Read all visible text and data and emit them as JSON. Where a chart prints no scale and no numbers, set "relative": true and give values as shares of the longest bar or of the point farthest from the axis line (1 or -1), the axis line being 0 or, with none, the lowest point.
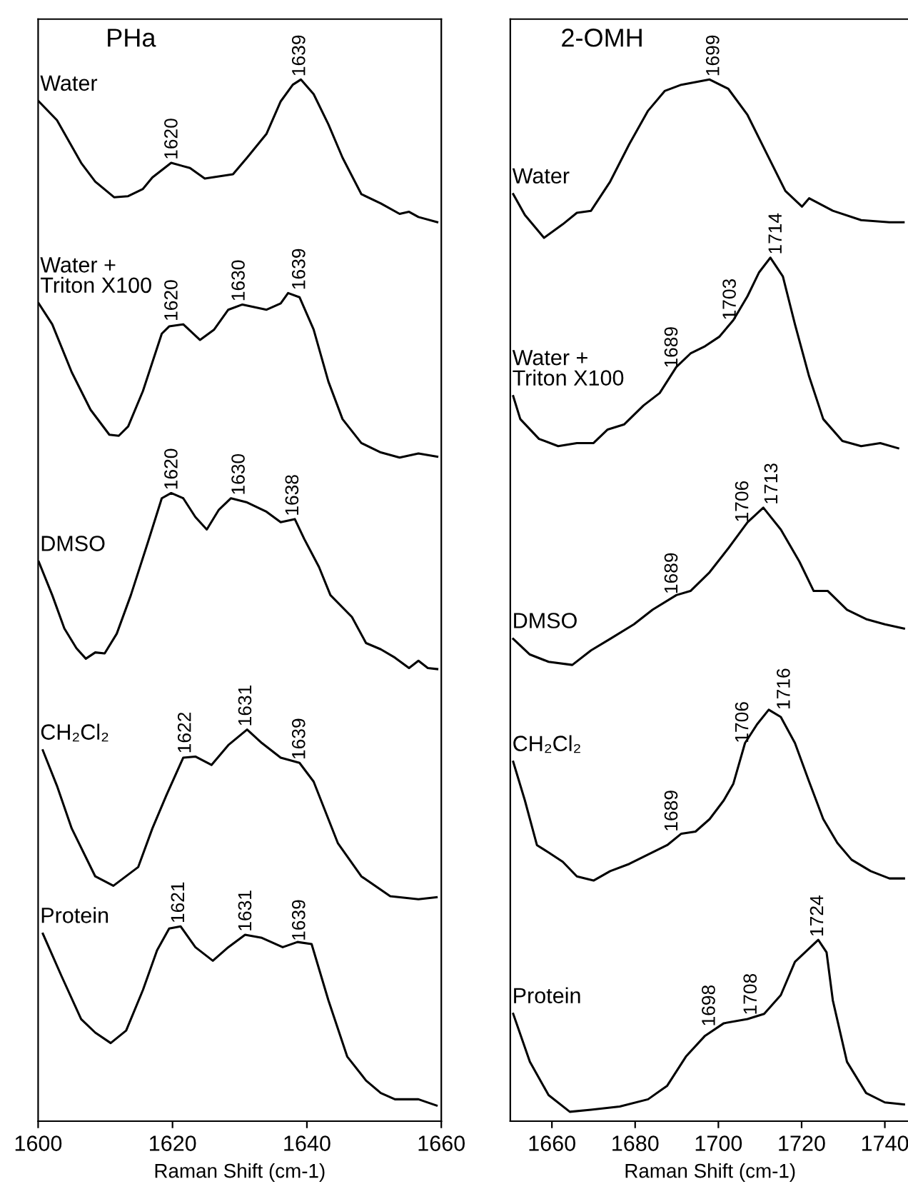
{
  "chart_data": [
    {
      "type": "line",
      "relative": true,
      "title": "PHa",
      "xlabel": "Raman Shift (cm-1)",
      "xlim": [
        1600,
        1660
      ],
      "xticks": [
        1600,
        1620,
        1640,
        1660
      ],
      "tick_labels": "x",
      "series": [
        {
          "name": "Water",
          "color": "#000000",
          "x": [
            1600.1,
            1602.8,
            1606.4,
            1608.5,
            1611.3,
            1613.4,
            1615.6,
            1617.0,
            1619.8,
            1622.6,
            1624.8,
            1629.0,
            1631.1,
            1634.0,
            1636.1,
            1637.9,
            1639.1,
            1641.0,
            1643.2,
            1645.3,
            1648.1,
            1651.0,
            1653.8,
            1655.2,
            1656.6,
            1659.4
          ],
          "values": [
            0.979,
            0.961,
            0.92,
            0.902,
            0.887,
            0.888,
            0.895,
            0.906,
            0.92,
            0.915,
            0.905,
            0.909,
            0.925,
            0.948,
            0.979,
            0.995,
            1.0,
            0.986,
            0.957,
            0.925,
            0.89,
            0.881,
            0.871,
            0.873,
            0.868,
            0.863
          ]
        },
        {
          "name": "Water + Triton X100",
          "color": "#000000",
          "x": [
            1600.1,
            1602.1,
            1605.0,
            1607.8,
            1610.6,
            1612.0,
            1613.4,
            1615.6,
            1618.4,
            1619.5,
            1621.6,
            1624.1,
            1626.2,
            1628.3,
            1630.4,
            1634.0,
            1636.1,
            1637.2,
            1638.9,
            1641.0,
            1643.2,
            1645.3,
            1648.1,
            1651.0,
            1653.8,
            1656.6,
            1659.4
          ],
          "values": [
            0.785,
            0.765,
            0.719,
            0.683,
            0.659,
            0.658,
            0.667,
            0.701,
            0.756,
            0.763,
            0.765,
            0.75,
            0.76,
            0.779,
            0.784,
            0.779,
            0.785,
            0.795,
            0.791,
            0.76,
            0.71,
            0.674,
            0.651,
            0.642,
            0.637,
            0.641,
            0.638
          ]
        },
        {
          "name": "DMSO",
          "color": "#000000",
          "x": [
            1600.1,
            1602.1,
            1603.9,
            1605.7,
            1607.1,
            1608.5,
            1609.9,
            1611.7,
            1613.8,
            1616.3,
            1618.4,
            1619.8,
            1621.6,
            1623.4,
            1625.1,
            1626.9,
            1628.7,
            1631.1,
            1634.0,
            1636.1,
            1638.2,
            1639.6,
            1641.8,
            1643.5,
            1646.7,
            1648.8,
            1651.0,
            1653.1,
            1655.2,
            1656.6,
            1658.0,
            1659.4
          ],
          "values": [
            0.537,
            0.505,
            0.473,
            0.454,
            0.444,
            0.45,
            0.449,
            0.468,
            0.505,
            0.555,
            0.598,
            0.603,
            0.598,
            0.58,
            0.568,
            0.587,
            0.598,
            0.594,
            0.585,
            0.575,
            0.578,
            0.559,
            0.532,
            0.505,
            0.484,
            0.459,
            0.453,
            0.445,
            0.435,
            0.442,
            0.435,
            0.434
          ]
        },
        {
          "name": "CH₂Cl₂",
          "color": "#000000",
          "x": [
            1600.7,
            1602.8,
            1605.0,
            1608.5,
            1611.2,
            1614.9,
            1617.0,
            1619.1,
            1621.6,
            1623.4,
            1625.8,
            1628.3,
            1631.1,
            1633.3,
            1636.1,
            1638.9,
            1641.0,
            1644.6,
            1648.1,
            1652.4,
            1656.6,
            1659.3
          ],
          "values": [
            0.356,
            0.322,
            0.281,
            0.235,
            0.226,
            0.244,
            0.281,
            0.313,
            0.349,
            0.35,
            0.342,
            0.361,
            0.376,
            0.363,
            0.349,
            0.344,
            0.326,
            0.267,
            0.235,
            0.216,
            0.213,
            0.215
          ]
        },
        {
          "name": "Protein",
          "color": "#000000",
          "x": [
            1600.7,
            1603.5,
            1606.4,
            1608.5,
            1610.8,
            1613.1,
            1615.6,
            1617.7,
            1619.5,
            1621.2,
            1623.4,
            1626.0,
            1628.3,
            1630.8,
            1633.3,
            1636.4,
            1638.6,
            1640.7,
            1643.2,
            1646.0,
            1648.8,
            1651.0,
            1653.1,
            1656.6,
            1659.3
          ],
          "values": [
            0.18,
            0.139,
            0.098,
            0.085,
            0.075,
            0.087,
            0.126,
            0.164,
            0.185,
            0.187,
            0.167,
            0.154,
            0.167,
            0.179,
            0.176,
            0.167,
            0.172,
            0.17,
            0.116,
            0.062,
            0.039,
            0.027,
            0.021,
            0.021,
            0.015
          ]
        }
      ],
      "annotations": [
        {
          "text": "1620",
          "x": 1620,
          "y": 0.92
        },
        {
          "text": "1639",
          "x": 1639,
          "y": 1.0
        },
        {
          "text": "1620",
          "x": 1620,
          "y": 0.765
        },
        {
          "text": "1630",
          "x": 1630,
          "y": 0.784
        },
        {
          "text": "1639",
          "x": 1639,
          "y": 0.795
        },
        {
          "text": "1620",
          "x": 1620,
          "y": 0.603
        },
        {
          "text": "1630",
          "x": 1630,
          "y": 0.598
        },
        {
          "text": "1638",
          "x": 1638,
          "y": 0.578
        },
        {
          "text": "1622",
          "x": 1622,
          "y": 0.35
        },
        {
          "text": "1631",
          "x": 1631,
          "y": 0.376
        },
        {
          "text": "1639",
          "x": 1639,
          "y": 0.344
        },
        {
          "text": "1621",
          "x": 1621,
          "y": 0.187
        },
        {
          "text": "1631",
          "x": 1631,
          "y": 0.179
        },
        {
          "text": "1639",
          "x": 1639,
          "y": 0.17
        }
      ]
    },
    {
      "type": "line",
      "relative": true,
      "title": "2-OMH",
      "xlabel": "Raman Shift (cm-1)",
      "xlim": [
        1650,
        1746
      ],
      "xticks": [
        1660,
        1680,
        1700,
        1720,
        1740
      ],
      "tick_labels": "x",
      "series": [
        {
          "name": "Water",
          "color": "#000000",
          "x": [
            1650.7,
            1653.5,
            1658.1,
            1662.6,
            1666.0,
            1669.4,
            1674.0,
            1678.6,
            1683.1,
            1687.1,
            1691.1,
            1697.9,
            1702.4,
            1707.0,
            1711.6,
            1716.1,
            1720.1,
            1721.8,
            1727.5,
            1734.3,
            1741.1,
            1744.5
          ],
          "values": [
            0.89,
            0.87,
            0.848,
            0.861,
            0.872,
            0.874,
            0.902,
            0.938,
            0.97,
            0.989,
            0.995,
            1.0,
            0.991,
            0.966,
            0.929,
            0.893,
            0.878,
            0.886,
            0.874,
            0.865,
            0.863,
            0.863
          ]
        },
        {
          "name": "Water + Triton X100",
          "color": "#000000",
          "x": [
            1650.7,
            1652.4,
            1656.9,
            1661.5,
            1666.0,
            1670.0,
            1673.4,
            1677.4,
            1682.0,
            1685.9,
            1689.9,
            1693.3,
            1696.8,
            1700.2,
            1703.6,
            1707.0,
            1709.8,
            1712.5,
            1715.5,
            1718.4,
            1721.8,
            1725.2,
            1729.8,
            1734.3,
            1738.9,
            1743.2
          ],
          "values": [
            0.696,
            0.674,
            0.655,
            0.648,
            0.651,
            0.651,
            0.664,
            0.669,
            0.687,
            0.699,
            0.724,
            0.737,
            0.744,
            0.753,
            0.769,
            0.792,
            0.815,
            0.829,
            0.811,
            0.765,
            0.715,
            0.674,
            0.653,
            0.648,
            0.651,
            0.646
          ]
        },
        {
          "name": "DMSO",
          "color": "#000000",
          "x": [
            1650.7,
            1654.7,
            1659.2,
            1664.9,
            1669.4,
            1674.0,
            1679.7,
            1684.2,
            1689.9,
            1693.3,
            1697.9,
            1702.4,
            1707.0,
            1710.8,
            1715.0,
            1719.5,
            1722.9,
            1726.3,
            1730.9,
            1735.5,
            1740.0,
            1744.6
          ],
          "values": [
            0.463,
            0.448,
            0.441,
            0.438,
            0.452,
            0.463,
            0.477,
            0.491,
            0.505,
            0.509,
            0.527,
            0.55,
            0.575,
            0.589,
            0.568,
            0.537,
            0.509,
            0.509,
            0.491,
            0.482,
            0.477,
            0.473
          ]
        },
        {
          "name": "CH₂Cl₂",
          "color": "#000000",
          "x": [
            1650.7,
            1653.5,
            1656.4,
            1659.2,
            1662.6,
            1666.0,
            1670.0,
            1674.0,
            1678.6,
            1683.1,
            1687.7,
            1691.1,
            1694.5,
            1697.9,
            1701.3,
            1703.6,
            1706.4,
            1709.3,
            1712.1,
            1715.0,
            1718.4,
            1721.8,
            1725.2,
            1728.6,
            1732.0,
            1736.6,
            1741.1,
            1744.6
          ],
          "values": [
            0.345,
            0.308,
            0.265,
            0.258,
            0.249,
            0.235,
            0.231,
            0.24,
            0.247,
            0.256,
            0.265,
            0.276,
            0.278,
            0.29,
            0.308,
            0.324,
            0.363,
            0.381,
            0.395,
            0.388,
            0.363,
            0.326,
            0.29,
            0.267,
            0.251,
            0.24,
            0.233,
            0.233
          ]
        },
        {
          "name": "Protein",
          "color": "#000000",
          "x": [
            1650.7,
            1654.7,
            1659.2,
            1664.3,
            1669.4,
            1676.3,
            1683.1,
            1687.7,
            1692.2,
            1696.8,
            1701.3,
            1707.0,
            1711.0,
            1715.0,
            1718.4,
            1724.0,
            1726.0,
            1727.5,
            1730.9,
            1735.5,
            1740.0,
            1744.6
          ],
          "values": [
            0.103,
            0.057,
            0.025,
            0.009,
            0.011,
            0.014,
            0.021,
            0.034,
            0.062,
            0.082,
            0.094,
            0.098,
            0.103,
            0.121,
            0.153,
            0.174,
            0.162,
            0.116,
            0.057,
            0.027,
            0.018,
            0.016
          ]
        }
      ],
      "annotations": [
        {
          "text": "1699",
          "x": 1699,
          "y": 1.0
        },
        {
          "text": "1689",
          "x": 1689,
          "y": 0.72
        },
        {
          "text": "1703",
          "x": 1703,
          "y": 0.766
        },
        {
          "text": "1714",
          "x": 1714,
          "y": 0.829
        },
        {
          "text": "1689",
          "x": 1689,
          "y": 0.503
        },
        {
          "text": "1706",
          "x": 1706,
          "y": 0.572
        },
        {
          "text": "1713",
          "x": 1713,
          "y": 0.589
        },
        {
          "text": "1689",
          "x": 1689,
          "y": 0.275
        },
        {
          "text": "1706",
          "x": 1706,
          "y": 0.36
        },
        {
          "text": "1716",
          "x": 1716,
          "y": 0.392
        },
        {
          "text": "1698",
          "x": 1698,
          "y": 0.088
        },
        {
          "text": "1708",
          "x": 1708,
          "y": 0.099
        },
        {
          "text": "1724",
          "x": 1724,
          "y": 0.174
        }
      ]
    }
  ]
}
